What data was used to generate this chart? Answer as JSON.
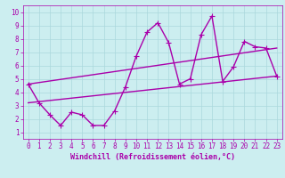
{
  "xlabel": "Windchill (Refroidissement éolien,°C)",
  "xlim": [
    -0.5,
    23.5
  ],
  "ylim": [
    0.5,
    10.5
  ],
  "xticks": [
    0,
    1,
    2,
    3,
    4,
    5,
    6,
    7,
    8,
    9,
    10,
    11,
    12,
    13,
    14,
    15,
    16,
    17,
    18,
    19,
    20,
    21,
    22,
    23
  ],
  "yticks": [
    1,
    2,
    3,
    4,
    5,
    6,
    7,
    8,
    9,
    10
  ],
  "background_color": "#cceef0",
  "grid_color": "#aad8dc",
  "line_color": "#aa00aa",
  "line1_x": [
    0,
    1,
    2,
    3,
    4,
    5,
    6,
    7,
    8,
    9,
    10,
    11,
    12,
    13,
    14,
    15,
    16,
    17,
    18,
    19,
    20,
    21,
    22,
    23
  ],
  "line1_y": [
    4.6,
    3.2,
    2.3,
    1.5,
    2.5,
    2.3,
    1.5,
    1.5,
    2.6,
    4.4,
    6.7,
    8.5,
    9.2,
    7.7,
    4.6,
    5.0,
    8.3,
    9.7,
    4.8,
    5.9,
    7.8,
    7.4,
    7.3,
    5.2
  ],
  "line2_x": [
    0,
    23
  ],
  "line2_y": [
    3.2,
    5.2
  ],
  "line3_x": [
    0,
    23
  ],
  "line3_y": [
    4.6,
    7.3
  ],
  "marker": "P",
  "markersize": 3,
  "linewidth": 1.0,
  "tick_fontsize": 5.5,
  "label_fontsize": 6.0
}
